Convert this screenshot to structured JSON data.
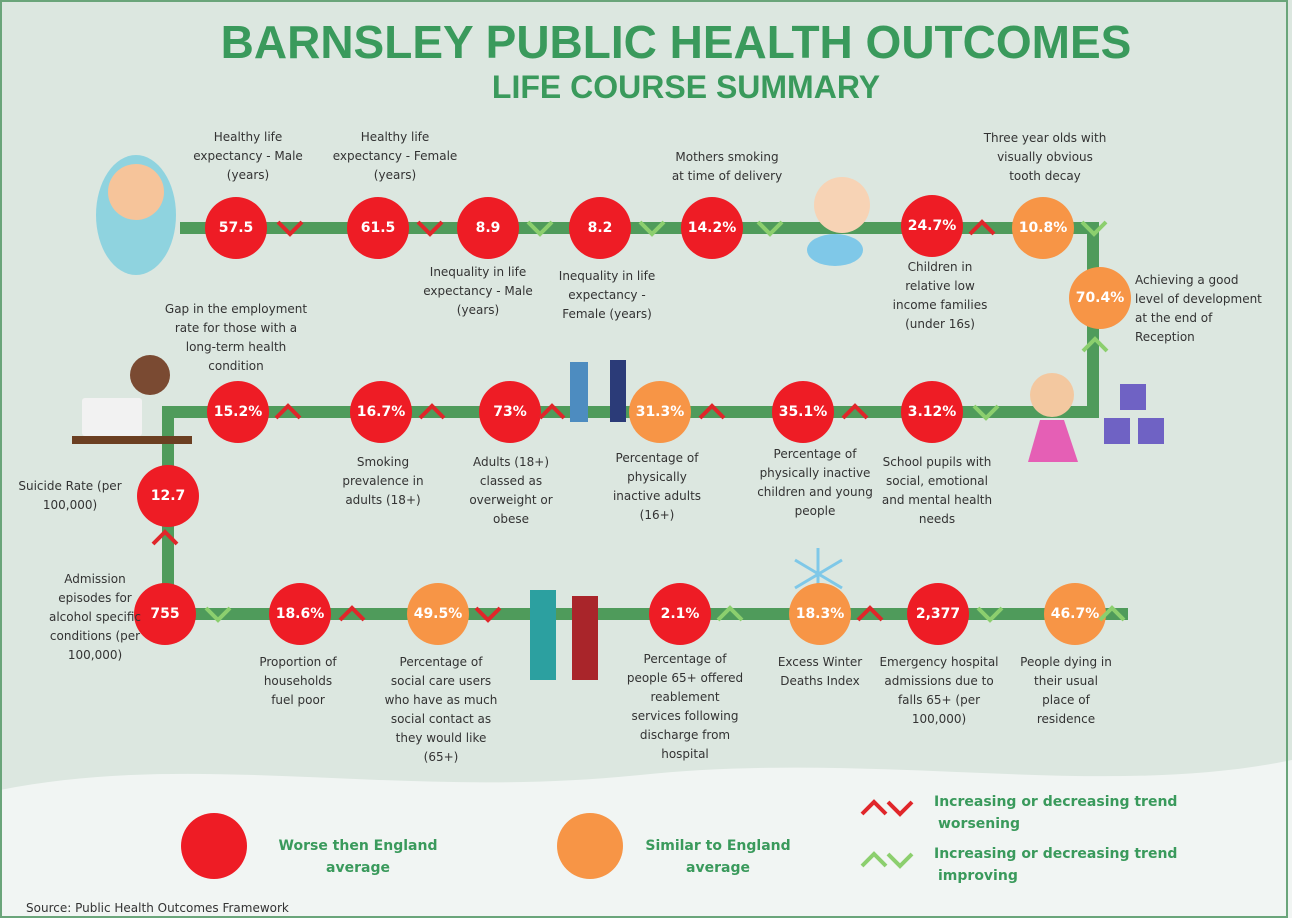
{
  "header": {
    "title": "BARNSLEY PUBLIC HEALTH OUTCOMES",
    "subtitle": "LIFE COURSE SUMMARY"
  },
  "indicators": [
    {
      "value": "57.5",
      "label": [
        "Healthy life",
        "expectancy - Male",
        "(years)"
      ],
      "color": "#ee1c25",
      "trend": "down",
      "trend_color": "#e0262a"
    },
    {
      "value": "61.5",
      "label": [
        "Healthy life",
        "expectancy - Female",
        "(years)"
      ],
      "color": "#ee1c25",
      "trend": "down",
      "trend_color": "#e0262a"
    },
    {
      "value": "8.9",
      "label": [
        "Inequality in life",
        "expectancy - Male",
        "(years)"
      ],
      "color": "#ee1c25",
      "trend": "down",
      "trend_color": "#8ccf6e"
    },
    {
      "value": "8.2",
      "label": [
        "Inequality in life",
        "expectancy -",
        "Female (years)"
      ],
      "color": "#ee1c25",
      "trend": "down",
      "trend_color": "#8ccf6e"
    },
    {
      "value": "14.2%",
      "label": [
        "Mothers smoking",
        "at time of delivery"
      ],
      "color": "#ee1c25",
      "trend": "down",
      "trend_color": "#8ccf6e"
    },
    {
      "value": "24.7%",
      "label": [
        "Children in",
        "relative low",
        "income families",
        "(under 16s)"
      ],
      "color": "#ee1c25",
      "trend": "up",
      "trend_color": "#e0262a"
    },
    {
      "value": "10.8%",
      "label": [
        "Three year olds with",
        "visually obvious",
        "tooth decay"
      ],
      "color": "#f79546",
      "trend": "down",
      "trend_color": "#8ccf6e"
    },
    {
      "value": "70.4%",
      "label": [
        "Achieving a good",
        "level of development",
        "at the end of",
        "Reception"
      ],
      "color": "#f79546",
      "trend": "up",
      "trend_color": "#8ccf6e"
    },
    {
      "value": "3.12%",
      "label": [
        "School pupils with",
        "social, emotional",
        "and mental health",
        "needs"
      ],
      "color": "#ee1c25",
      "trend": "down",
      "trend_color": "#8ccf6e"
    },
    {
      "value": "35.1%",
      "label": [
        "Percentage of",
        "physically inactive",
        "children and young",
        "people"
      ],
      "color": "#ee1c25",
      "trend": "up",
      "trend_color": "#e0262a"
    },
    {
      "value": "31.3%",
      "label": [
        "Percentage of",
        "physically",
        "inactive adults",
        "(16+)"
      ],
      "color": "#f79546",
      "trend": "up",
      "trend_color": "#e0262a"
    },
    {
      "value": "73%",
      "label": [
        "Adults (18+)",
        "classed as",
        "overweight or",
        "obese"
      ],
      "color": "#ee1c25",
      "trend": "up",
      "trend_color": "#e0262a"
    },
    {
      "value": "16.7%",
      "label": [
        "Smoking",
        "prevalence in",
        "adults (18+)"
      ],
      "color": "#ee1c25",
      "trend": "up",
      "trend_color": "#e0262a"
    },
    {
      "value": "15.2%",
      "label": [
        "Gap in the employment",
        "rate for those with a",
        "long-term health",
        "condition"
      ],
      "color": "#ee1c25",
      "trend": "up",
      "trend_color": "#e0262a"
    },
    {
      "value": "12.7",
      "label": [
        "Suicide Rate (per",
        "100,000)"
      ],
      "color": "#ee1c25",
      "trend": "up",
      "trend_color": "#e0262a"
    },
    {
      "value": "755",
      "label": [
        "Admission",
        "episodes for",
        "alcohol specific",
        "conditions  (per",
        "100,000)"
      ],
      "color": "#ee1c25",
      "trend": "down",
      "trend_color": "#8ccf6e"
    },
    {
      "value": "18.6%",
      "label": [
        "Proportion of",
        "households",
        "fuel poor"
      ],
      "color": "#ee1c25",
      "trend": "up",
      "trend_color": "#e0262a"
    },
    {
      "value": "49.5%",
      "label": [
        "Percentage of",
        "social care users",
        "who have as much",
        "social contact as",
        "they would like",
        "(65+)"
      ],
      "color": "#f79546",
      "trend": "down",
      "trend_color": "#e0262a"
    },
    {
      "value": "2.1%",
      "label": [
        "Percentage of",
        "people 65+ offered",
        "reablement",
        "services following",
        "discharge from",
        "hospital"
      ],
      "color": "#ee1c25",
      "trend": "up",
      "trend_color": "#8ccf6e"
    },
    {
      "value": "18.3%",
      "label": [
        "Excess Winter",
        "Deaths Index"
      ],
      "color": "#f79546",
      "trend": "up",
      "trend_color": "#e0262a"
    },
    {
      "value": "2,377",
      "label": [
        "Emergency hospital",
        "admissions due to",
        "falls 65+ (per",
        "100,000)"
      ],
      "color": "#ee1c25",
      "trend": "down",
      "trend_color": "#8ccf6e"
    },
    {
      "value": "46.7%",
      "label": [
        "People dying in",
        "their usual",
        "place of",
        "residence"
      ],
      "color": "#f79546",
      "trend": "up",
      "trend_color": "#8ccf6e"
    }
  ],
  "legend": {
    "status": [
      {
        "label": [
          "Worse then England",
          "average"
        ],
        "color": "#ee1c25"
      },
      {
        "label": [
          "Similar to England",
          "average"
        ],
        "color": "#f79546"
      }
    ],
    "trends": [
      {
        "label": [
          "Increasing or decreasing trend",
          "worsening"
        ],
        "color": "#e0262a"
      },
      {
        "label": [
          "Increasing or decreasing trend",
          "improving"
        ],
        "color": "#8ccf6e"
      }
    ]
  },
  "footer": {
    "source": "Source: Public Health Outcomes Framework"
  }
}
